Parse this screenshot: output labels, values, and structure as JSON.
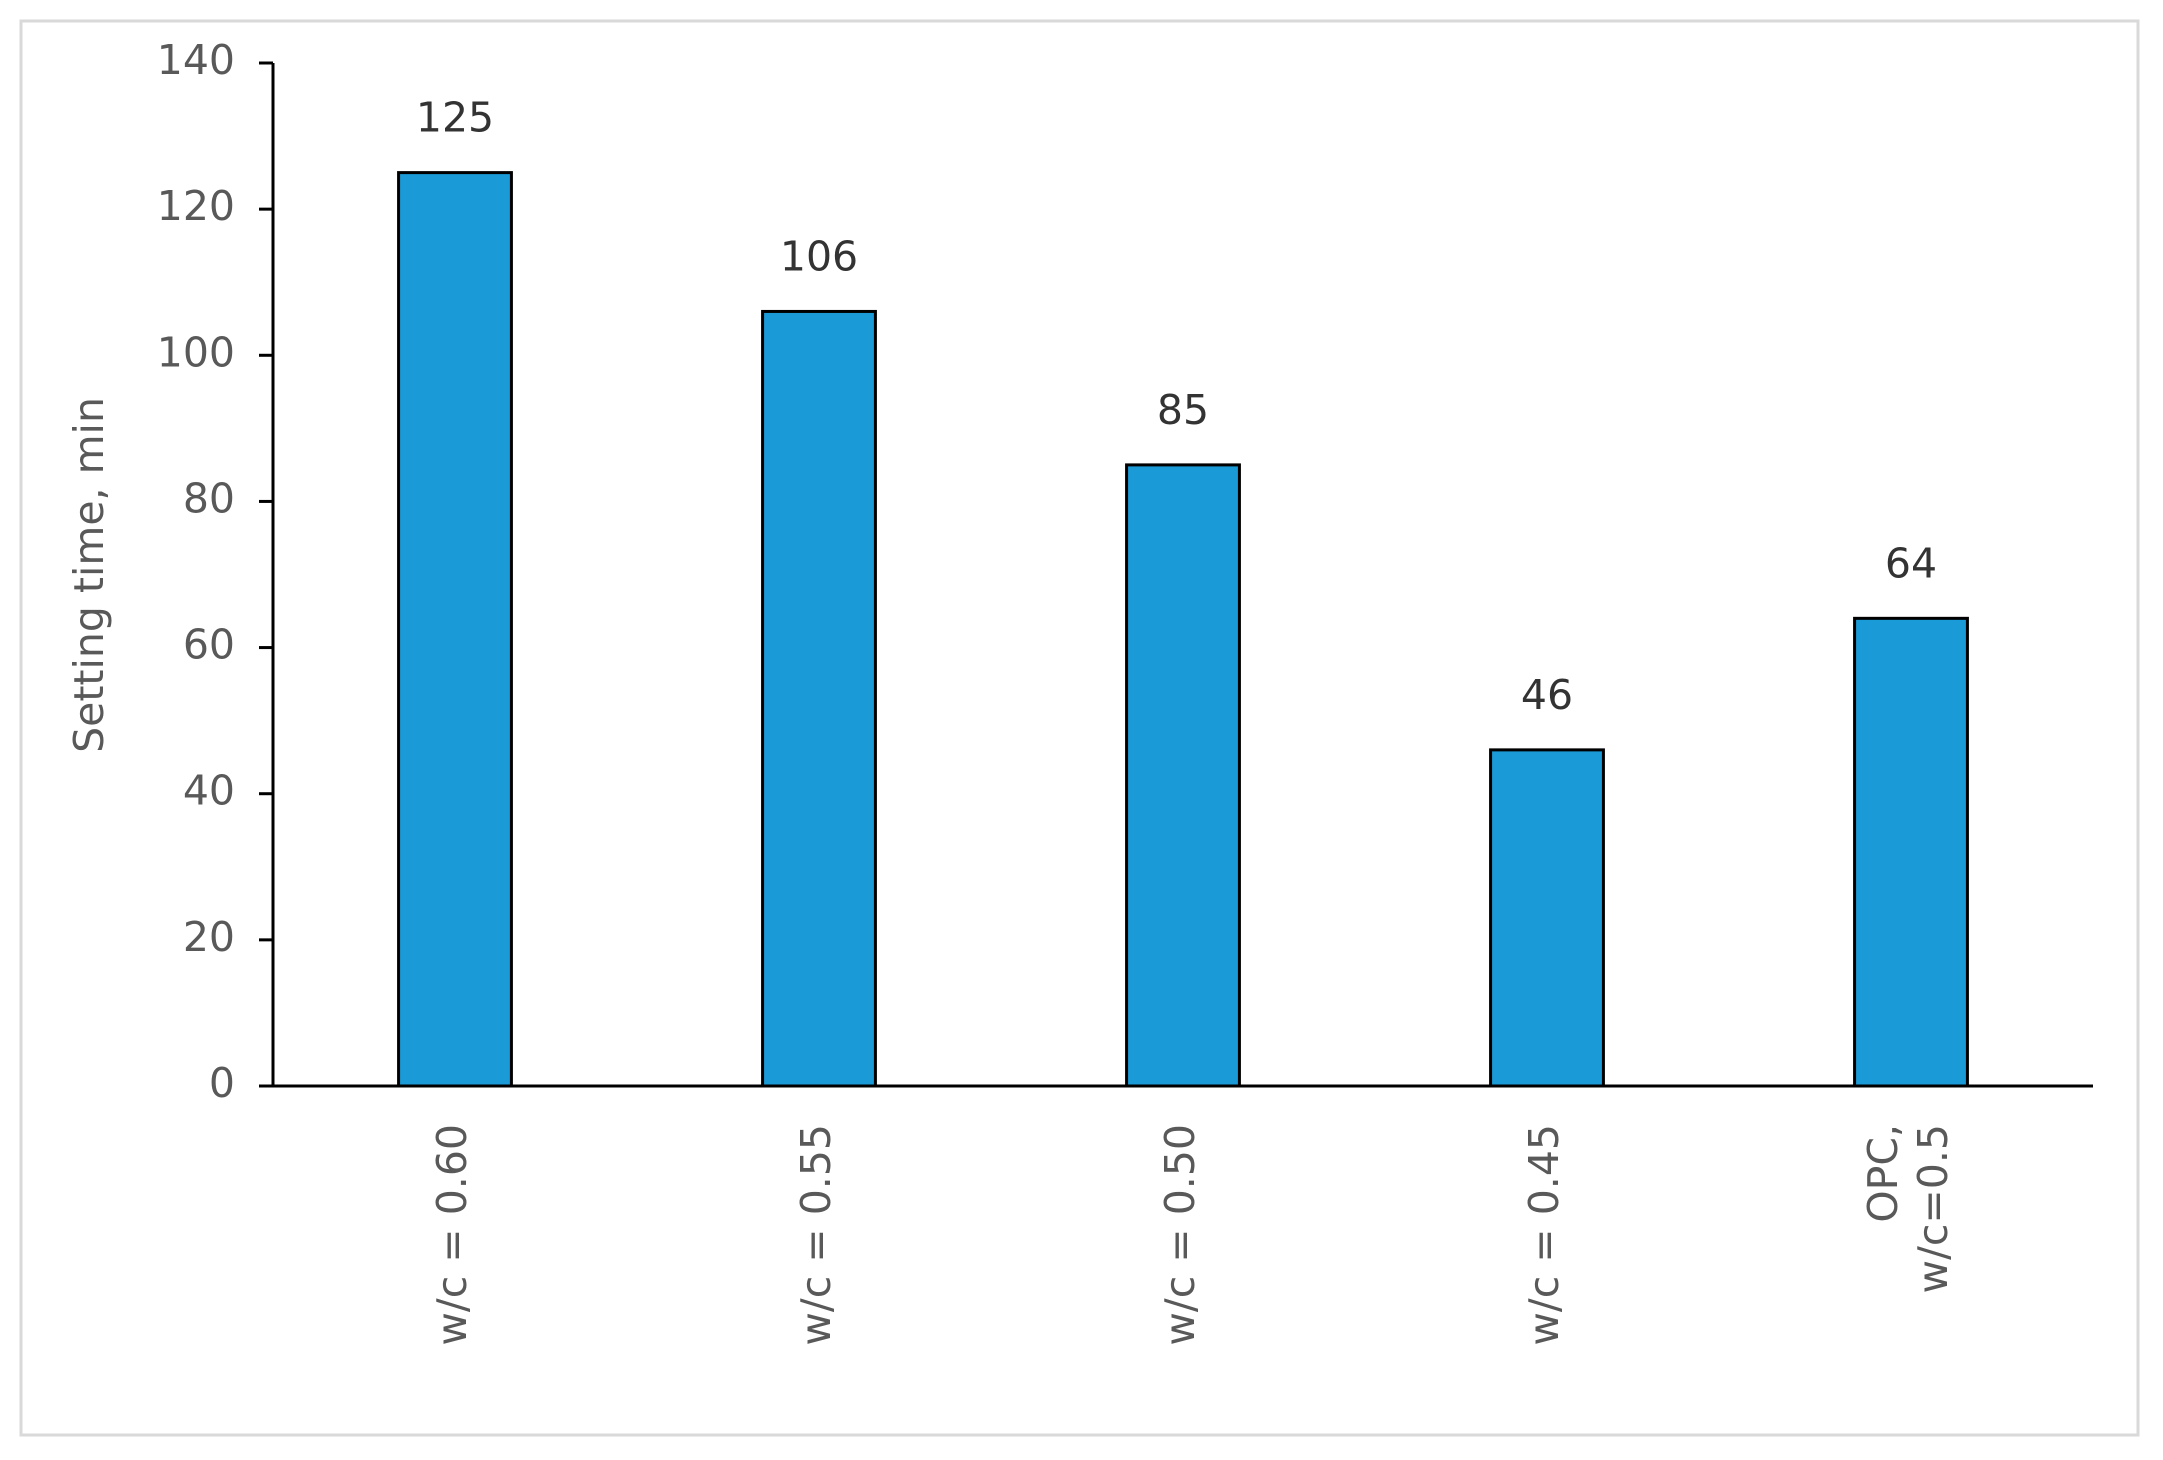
{
  "chart_data": {
    "type": "bar",
    "y_label": "Setting time, min",
    "categories": [
      "w/c = 0.60",
      "w/c = 0.55",
      "w/c = 0.50",
      "w/c = 0.45",
      "OPC,\nw/c=0.5"
    ],
    "values": [
      125,
      106,
      85,
      46,
      64
    ],
    "color": "#1a9ad6",
    "ylim": [
      0,
      140
    ],
    "yticks": [
      0,
      20,
      40,
      60,
      80,
      100,
      120,
      140
    ],
    "grid": false
  }
}
